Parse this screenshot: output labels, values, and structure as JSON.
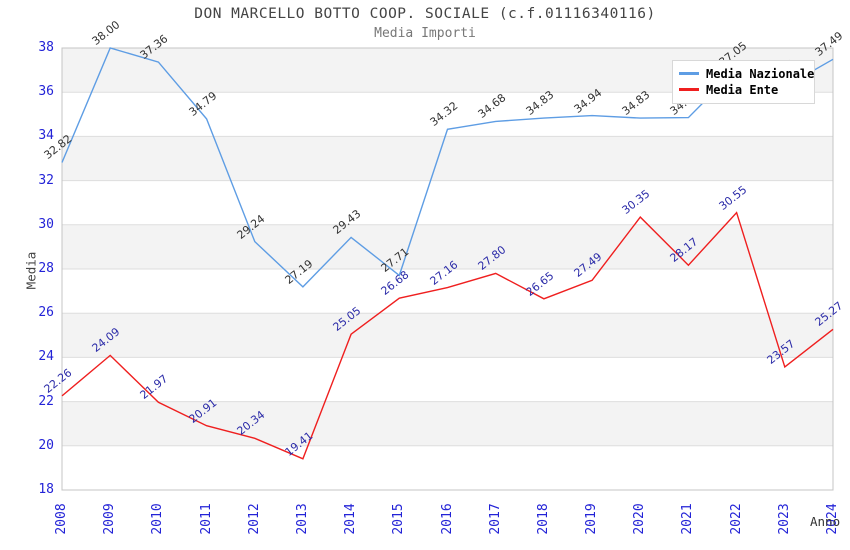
{
  "page": {
    "background": "#ffffff"
  },
  "chart_data": {
    "type": "line",
    "title": "DON MARCELLO BOTTO COOP. SOCIALE (c.f.01116340116)",
    "subtitle": "Media Importi",
    "xlabel": "Anno",
    "ylabel": "Media",
    "x": [
      2008,
      2009,
      2010,
      2011,
      2012,
      2013,
      2014,
      2015,
      2016,
      2017,
      2018,
      2019,
      2020,
      2021,
      2022,
      2023,
      2024
    ],
    "ylim": [
      18,
      38
    ],
    "ytick_step": 2,
    "yticks": [
      18,
      20,
      22,
      24,
      26,
      28,
      30,
      32,
      34,
      36,
      38
    ],
    "grid": "horizontal gridlines with alternating light-gray bands",
    "legend_position": "top-right overlay box",
    "series": [
      {
        "name": "Media Nazionale",
        "color": "#5e9de4",
        "label_color": "#333333",
        "values": [
          32.82,
          38.0,
          37.36,
          34.79,
          29.24,
          27.19,
          29.43,
          27.71,
          34.32,
          34.68,
          34.83,
          34.94,
          34.83,
          34.85,
          37.05,
          36.24,
          37.49
        ]
      },
      {
        "name": "Media Ente",
        "color": "#ef1f1f",
        "label_color": "#2b2ba8",
        "values": [
          22.26,
          24.09,
          21.97,
          20.91,
          20.34,
          19.41,
          25.05,
          26.68,
          27.16,
          27.8,
          26.65,
          27.49,
          30.35,
          28.17,
          30.55,
          23.57,
          25.27
        ]
      }
    ]
  },
  "colors": {
    "band_gray": "#f3f3f3",
    "gridline": "#dedede",
    "plot_border": "#c4c4c4",
    "tick_label": "#2323d7",
    "title": "#444444",
    "subtitle": "#777777"
  }
}
